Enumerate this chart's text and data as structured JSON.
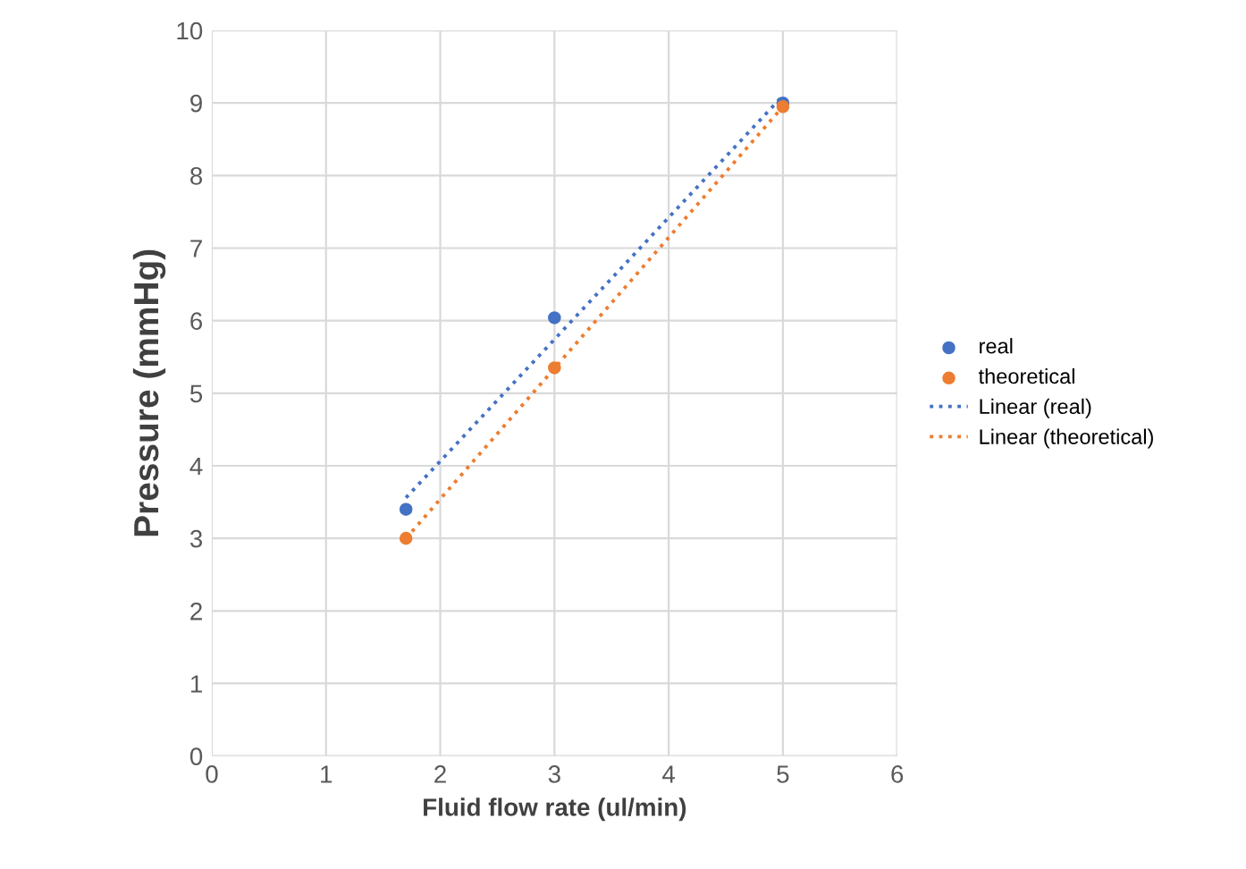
{
  "chart_data": {
    "type": "scatter",
    "xlabel": "Fluid flow rate (ul/min)",
    "ylabel": "Pressure (mmHg)",
    "xlim": [
      0,
      6
    ],
    "xticks": [
      0,
      1,
      2,
      3,
      4,
      5,
      6
    ],
    "ylim": [
      0,
      10
    ],
    "yticks": [
      0,
      1,
      2,
      3,
      4,
      5,
      6,
      7,
      8,
      9,
      10
    ],
    "grid": true,
    "legend": "right",
    "series": [
      {
        "name": "real",
        "color": "#4472c4",
        "marker": "circle",
        "x": [
          1.7,
          3,
          5
        ],
        "values": [
          3.4,
          6.04,
          9.0
        ]
      },
      {
        "name": "theoretical",
        "color": "#ed7d31",
        "marker": "circle",
        "x": [
          1.7,
          3,
          5
        ],
        "values": [
          3.0,
          5.35,
          8.95
        ]
      },
      {
        "name": "Linear (real)",
        "type": "line",
        "color": "#4472c4",
        "marker": "none",
        "line_style": "dotted",
        "x": [
          1.7,
          5
        ],
        "values": [
          3.56,
          9.1
        ]
      },
      {
        "name": "Linear (theoretical)",
        "type": "line",
        "color": "#ed7d31",
        "marker": "none",
        "line_style": "dotted",
        "x": [
          1.7,
          5
        ],
        "values": [
          3.0,
          8.95
        ]
      }
    ]
  }
}
